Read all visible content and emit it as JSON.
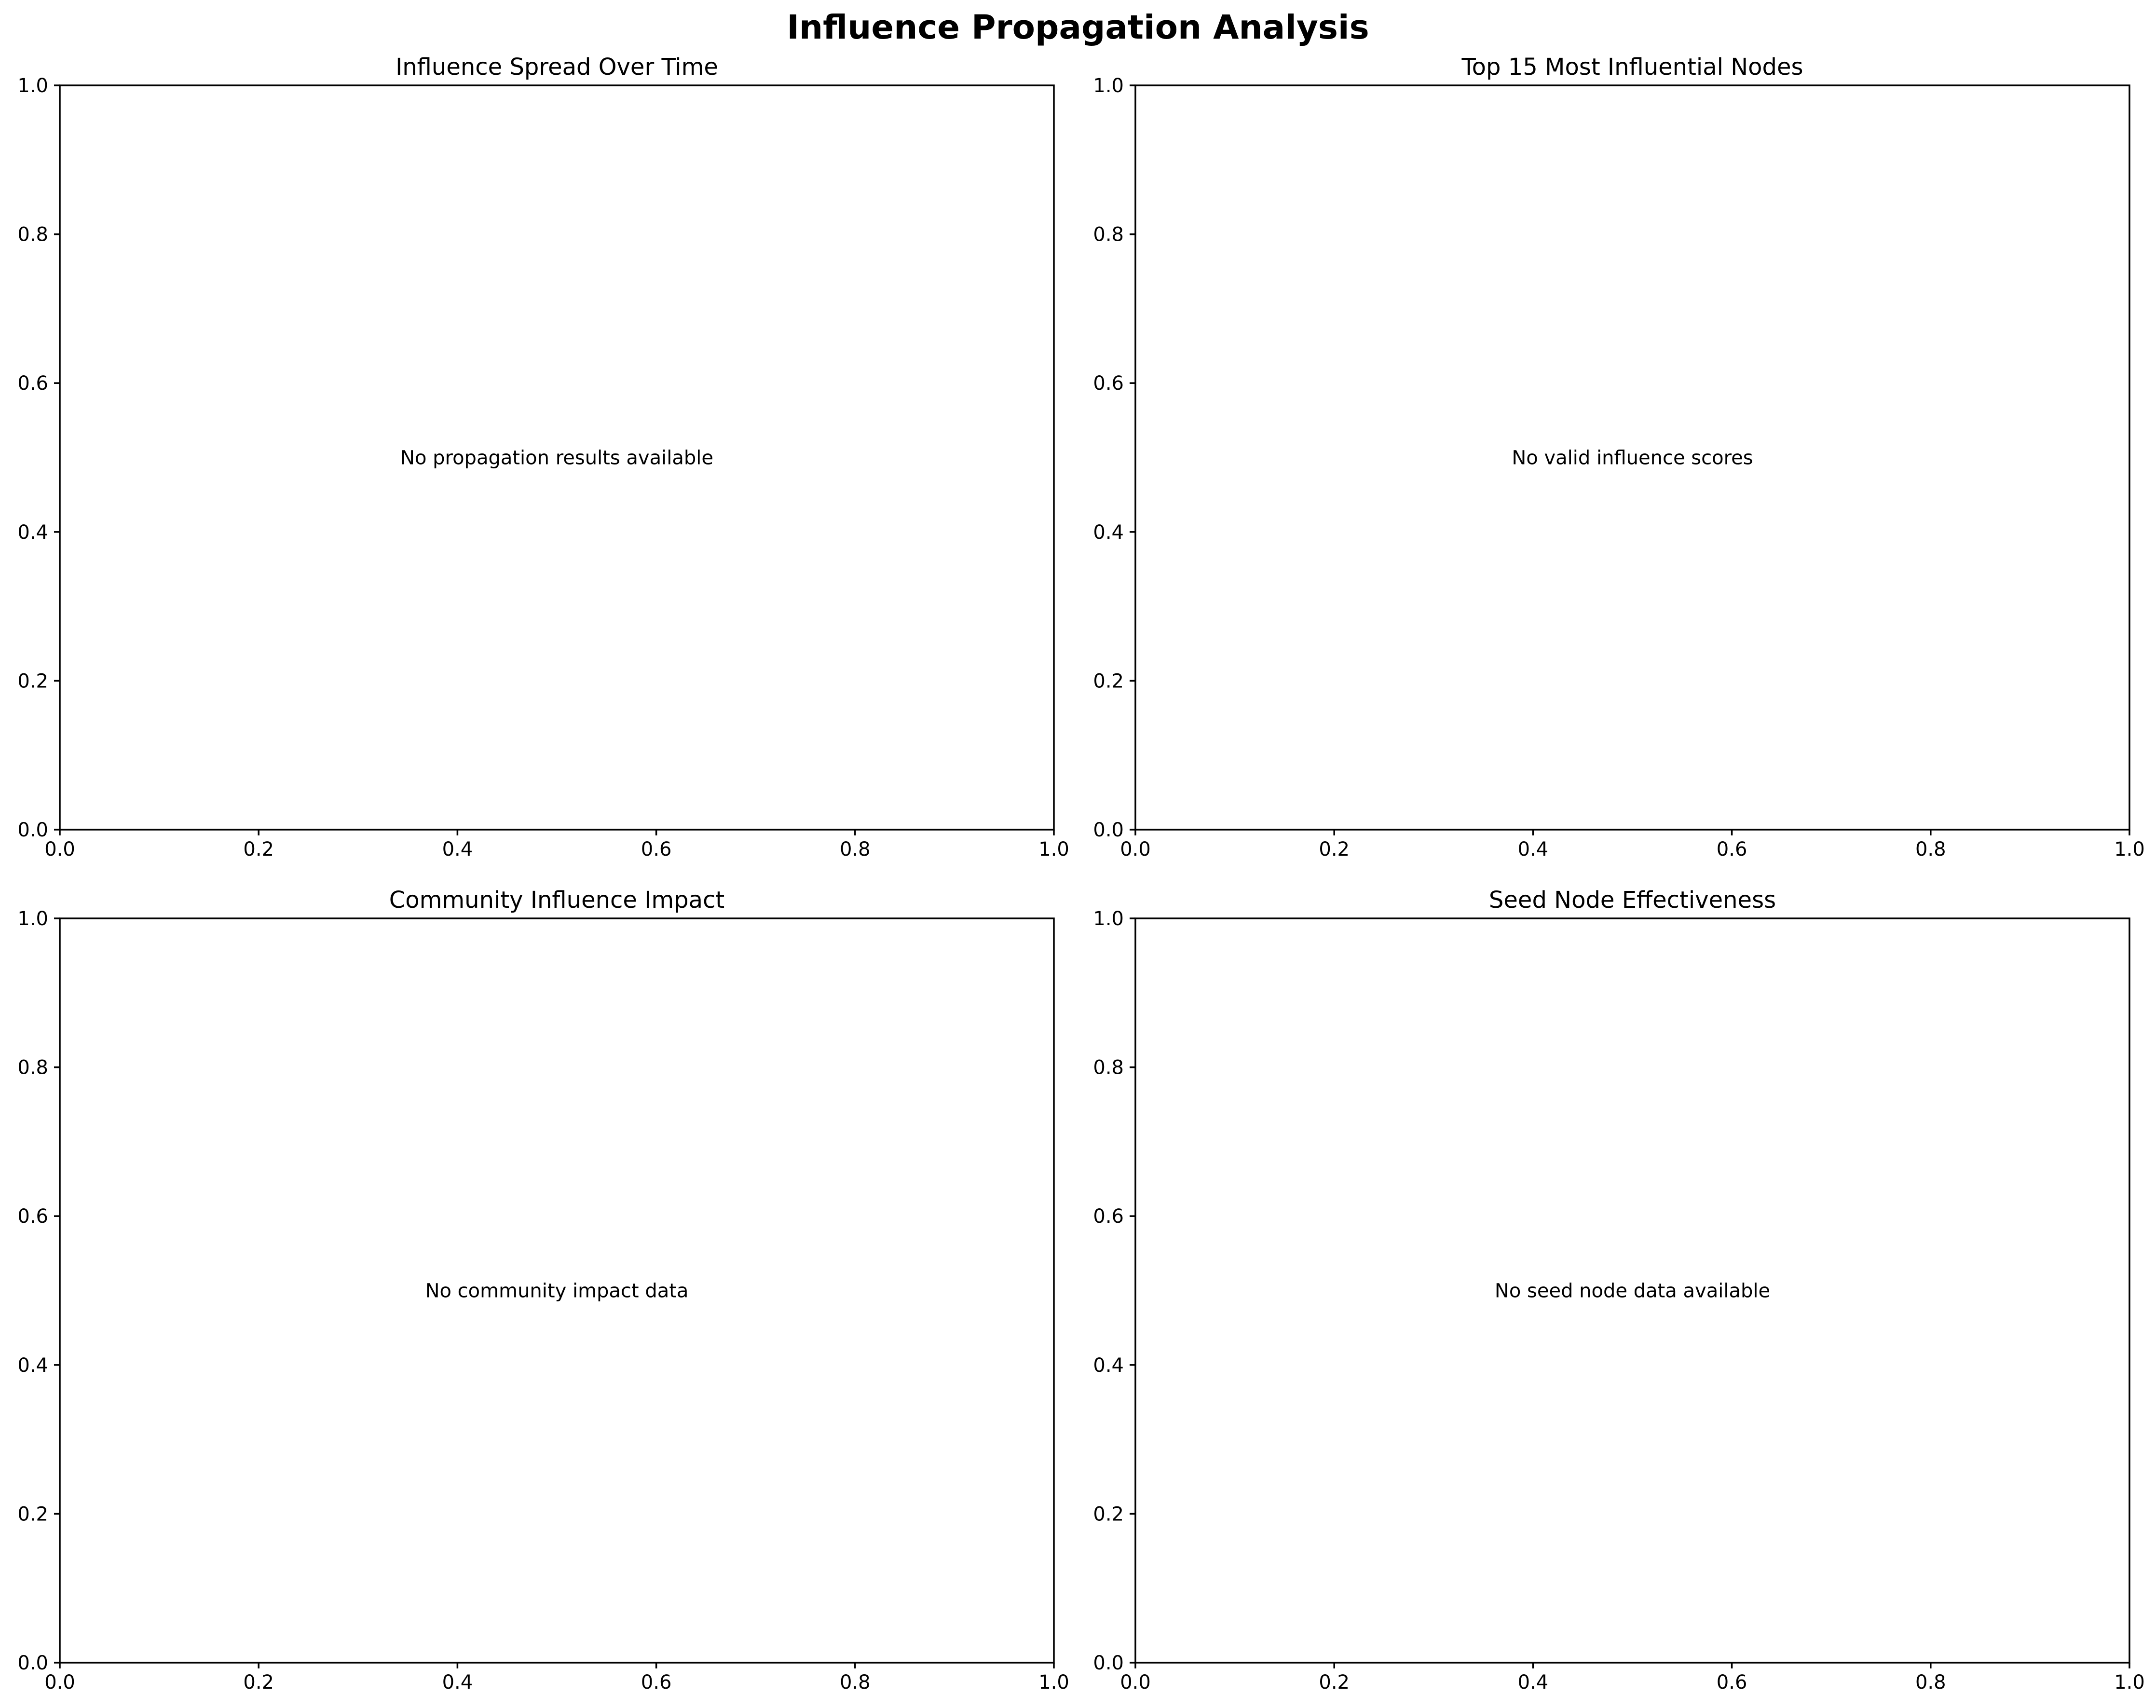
{
  "figure": {
    "suptitle": "Influence Propagation Analysis"
  },
  "chart_data": [
    {
      "type": "line",
      "title": "Influence Spread Over Time",
      "message": "No propagation results available",
      "xlim": [
        0,
        1
      ],
      "ylim": [
        0,
        1
      ],
      "xticks": [
        "0.0",
        "0.2",
        "0.4",
        "0.6",
        "0.8",
        "1.0"
      ],
      "yticks": [
        "0.0",
        "0.2",
        "0.4",
        "0.6",
        "0.8",
        "1.0"
      ],
      "series": []
    },
    {
      "type": "bar",
      "title": "Top 15 Most Influential Nodes",
      "message": "No valid influence scores",
      "xlim": [
        0,
        1
      ],
      "ylim": [
        0,
        1
      ],
      "xticks": [
        "0.0",
        "0.2",
        "0.4",
        "0.6",
        "0.8",
        "1.0"
      ],
      "yticks": [
        "0.0",
        "0.2",
        "0.4",
        "0.6",
        "0.8",
        "1.0"
      ],
      "series": []
    },
    {
      "type": "bar",
      "title": "Community Influence Impact",
      "message": "No community impact data",
      "xlim": [
        0,
        1
      ],
      "ylim": [
        0,
        1
      ],
      "xticks": [
        "0.0",
        "0.2",
        "0.4",
        "0.6",
        "0.8",
        "1.0"
      ],
      "yticks": [
        "0.0",
        "0.2",
        "0.4",
        "0.6",
        "0.8",
        "1.0"
      ],
      "series": []
    },
    {
      "type": "scatter",
      "title": "Seed Node Effectiveness",
      "message": "No seed node data available",
      "xlim": [
        0,
        1
      ],
      "ylim": [
        0,
        1
      ],
      "xticks": [
        "0.0",
        "0.2",
        "0.4",
        "0.6",
        "0.8",
        "1.0"
      ],
      "yticks": [
        "0.0",
        "0.2",
        "0.4",
        "0.6",
        "0.8",
        "1.0"
      ],
      "series": []
    }
  ]
}
